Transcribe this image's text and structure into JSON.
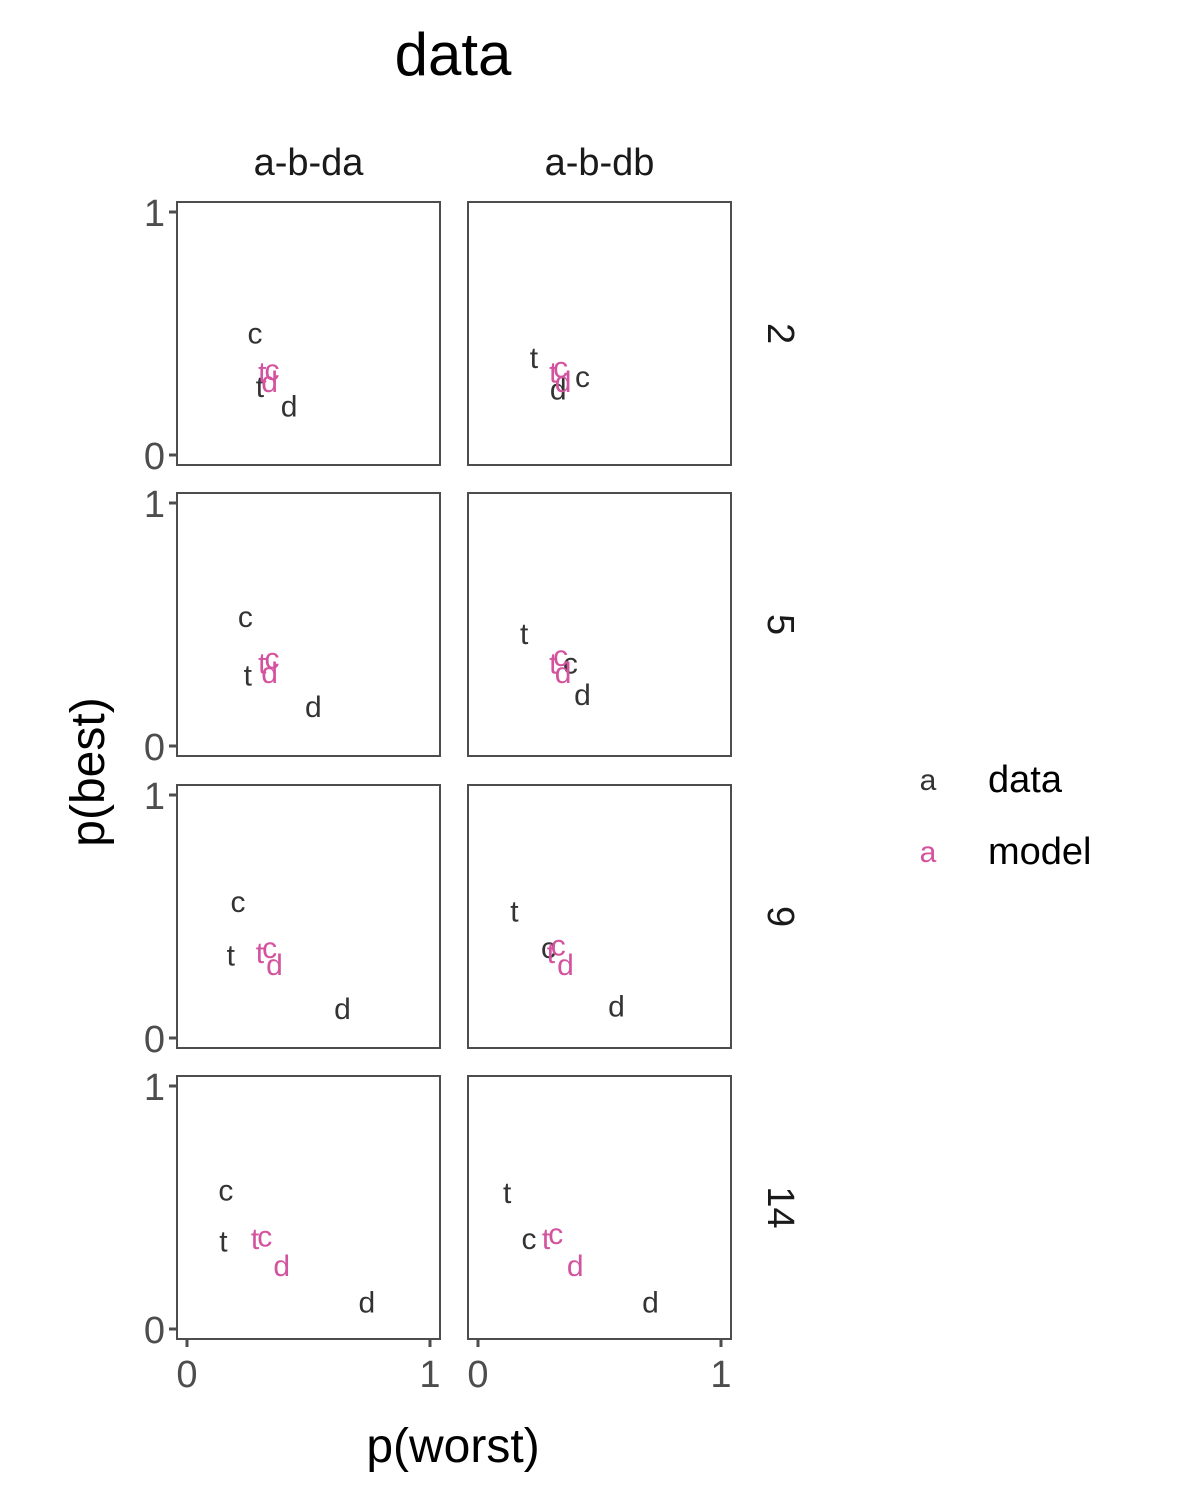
{
  "chart_data": {
    "type": "scatter",
    "title": "data",
    "xlabel": "p(worst)",
    "ylabel": "p(best)",
    "xlim": [
      0,
      1
    ],
    "ylim": [
      0,
      1
    ],
    "x_ticks": [
      "0",
      "1"
    ],
    "y_ticks": [
      "0",
      "1"
    ],
    "grid": false,
    "legend_position": "right",
    "colors": {
      "data": "#333333",
      "model": "#d3539e"
    },
    "legend": [
      {
        "key": "a",
        "label": "data",
        "series": "data"
      },
      {
        "key": "a",
        "label": "model",
        "series": "model"
      }
    ],
    "columns": [
      "a-b-da",
      "a-b-db"
    ],
    "rows": [
      "2",
      "5",
      "9",
      "14"
    ],
    "panels": [
      {
        "row": "2",
        "col": "a-b-da",
        "points": [
          {
            "label": "c",
            "series": "data",
            "x": 0.28,
            "y": 0.5
          },
          {
            "label": "t",
            "series": "data",
            "x": 0.3,
            "y": 0.28
          },
          {
            "label": "d",
            "series": "data",
            "x": 0.42,
            "y": 0.2
          },
          {
            "label": "t",
            "series": "model",
            "x": 0.31,
            "y": 0.34
          },
          {
            "label": "c",
            "series": "model",
            "x": 0.35,
            "y": 0.35
          },
          {
            "label": "d",
            "series": "model",
            "x": 0.34,
            "y": 0.3
          }
        ]
      },
      {
        "row": "2",
        "col": "a-b-db",
        "points": [
          {
            "label": "t",
            "series": "data",
            "x": 0.23,
            "y": 0.4
          },
          {
            "label": "c",
            "series": "data",
            "x": 0.43,
            "y": 0.32
          },
          {
            "label": "d",
            "series": "data",
            "x": 0.33,
            "y": 0.27
          },
          {
            "label": "t",
            "series": "model",
            "x": 0.31,
            "y": 0.34
          },
          {
            "label": "c",
            "series": "model",
            "x": 0.34,
            "y": 0.36
          },
          {
            "label": "d",
            "series": "model",
            "x": 0.35,
            "y": 0.3
          }
        ]
      },
      {
        "row": "5",
        "col": "a-b-da",
        "points": [
          {
            "label": "c",
            "series": "data",
            "x": 0.24,
            "y": 0.53
          },
          {
            "label": "t",
            "series": "data",
            "x": 0.25,
            "y": 0.29
          },
          {
            "label": "d",
            "series": "data",
            "x": 0.52,
            "y": 0.16
          },
          {
            "label": "t",
            "series": "model",
            "x": 0.31,
            "y": 0.34
          },
          {
            "label": "c",
            "series": "model",
            "x": 0.35,
            "y": 0.36
          },
          {
            "label": "d",
            "series": "model",
            "x": 0.34,
            "y": 0.3
          }
        ]
      },
      {
        "row": "5",
        "col": "a-b-db",
        "points": [
          {
            "label": "t",
            "series": "data",
            "x": 0.19,
            "y": 0.46
          },
          {
            "label": "c",
            "series": "data",
            "x": 0.38,
            "y": 0.34
          },
          {
            "label": "d",
            "series": "data",
            "x": 0.43,
            "y": 0.21
          },
          {
            "label": "t",
            "series": "model",
            "x": 0.31,
            "y": 0.34
          },
          {
            "label": "c",
            "series": "model",
            "x": 0.34,
            "y": 0.37
          },
          {
            "label": "d",
            "series": "model",
            "x": 0.35,
            "y": 0.3
          }
        ]
      },
      {
        "row": "9",
        "col": "a-b-da",
        "points": [
          {
            "label": "c",
            "series": "data",
            "x": 0.21,
            "y": 0.56
          },
          {
            "label": "t",
            "series": "data",
            "x": 0.18,
            "y": 0.34
          },
          {
            "label": "d",
            "series": "data",
            "x": 0.64,
            "y": 0.12
          },
          {
            "label": "t",
            "series": "model",
            "x": 0.3,
            "y": 0.35
          },
          {
            "label": "c",
            "series": "model",
            "x": 0.34,
            "y": 0.37
          },
          {
            "label": "d",
            "series": "model",
            "x": 0.36,
            "y": 0.3
          }
        ]
      },
      {
        "row": "9",
        "col": "a-b-db",
        "points": [
          {
            "label": "t",
            "series": "data",
            "x": 0.15,
            "y": 0.52
          },
          {
            "label": "c",
            "series": "data",
            "x": 0.29,
            "y": 0.37
          },
          {
            "label": "d",
            "series": "data",
            "x": 0.57,
            "y": 0.13
          },
          {
            "label": "t",
            "series": "model",
            "x": 0.3,
            "y": 0.35
          },
          {
            "label": "c",
            "series": "model",
            "x": 0.33,
            "y": 0.38
          },
          {
            "label": "d",
            "series": "model",
            "x": 0.36,
            "y": 0.3
          }
        ]
      },
      {
        "row": "14",
        "col": "a-b-da",
        "points": [
          {
            "label": "c",
            "series": "data",
            "x": 0.16,
            "y": 0.57
          },
          {
            "label": "t",
            "series": "data",
            "x": 0.15,
            "y": 0.36
          },
          {
            "label": "d",
            "series": "data",
            "x": 0.74,
            "y": 0.11
          },
          {
            "label": "t",
            "series": "model",
            "x": 0.28,
            "y": 0.37
          },
          {
            "label": "c",
            "series": "model",
            "x": 0.32,
            "y": 0.38
          },
          {
            "label": "d",
            "series": "model",
            "x": 0.39,
            "y": 0.26
          }
        ]
      },
      {
        "row": "14",
        "col": "a-b-db",
        "points": [
          {
            "label": "t",
            "series": "data",
            "x": 0.12,
            "y": 0.56
          },
          {
            "label": "c",
            "series": "data",
            "x": 0.21,
            "y": 0.37
          },
          {
            "label": "d",
            "series": "data",
            "x": 0.71,
            "y": 0.11
          },
          {
            "label": "t",
            "series": "model",
            "x": 0.28,
            "y": 0.37
          },
          {
            "label": "c",
            "series": "model",
            "x": 0.32,
            "y": 0.39
          },
          {
            "label": "d",
            "series": "model",
            "x": 0.4,
            "y": 0.26
          }
        ]
      }
    ]
  }
}
